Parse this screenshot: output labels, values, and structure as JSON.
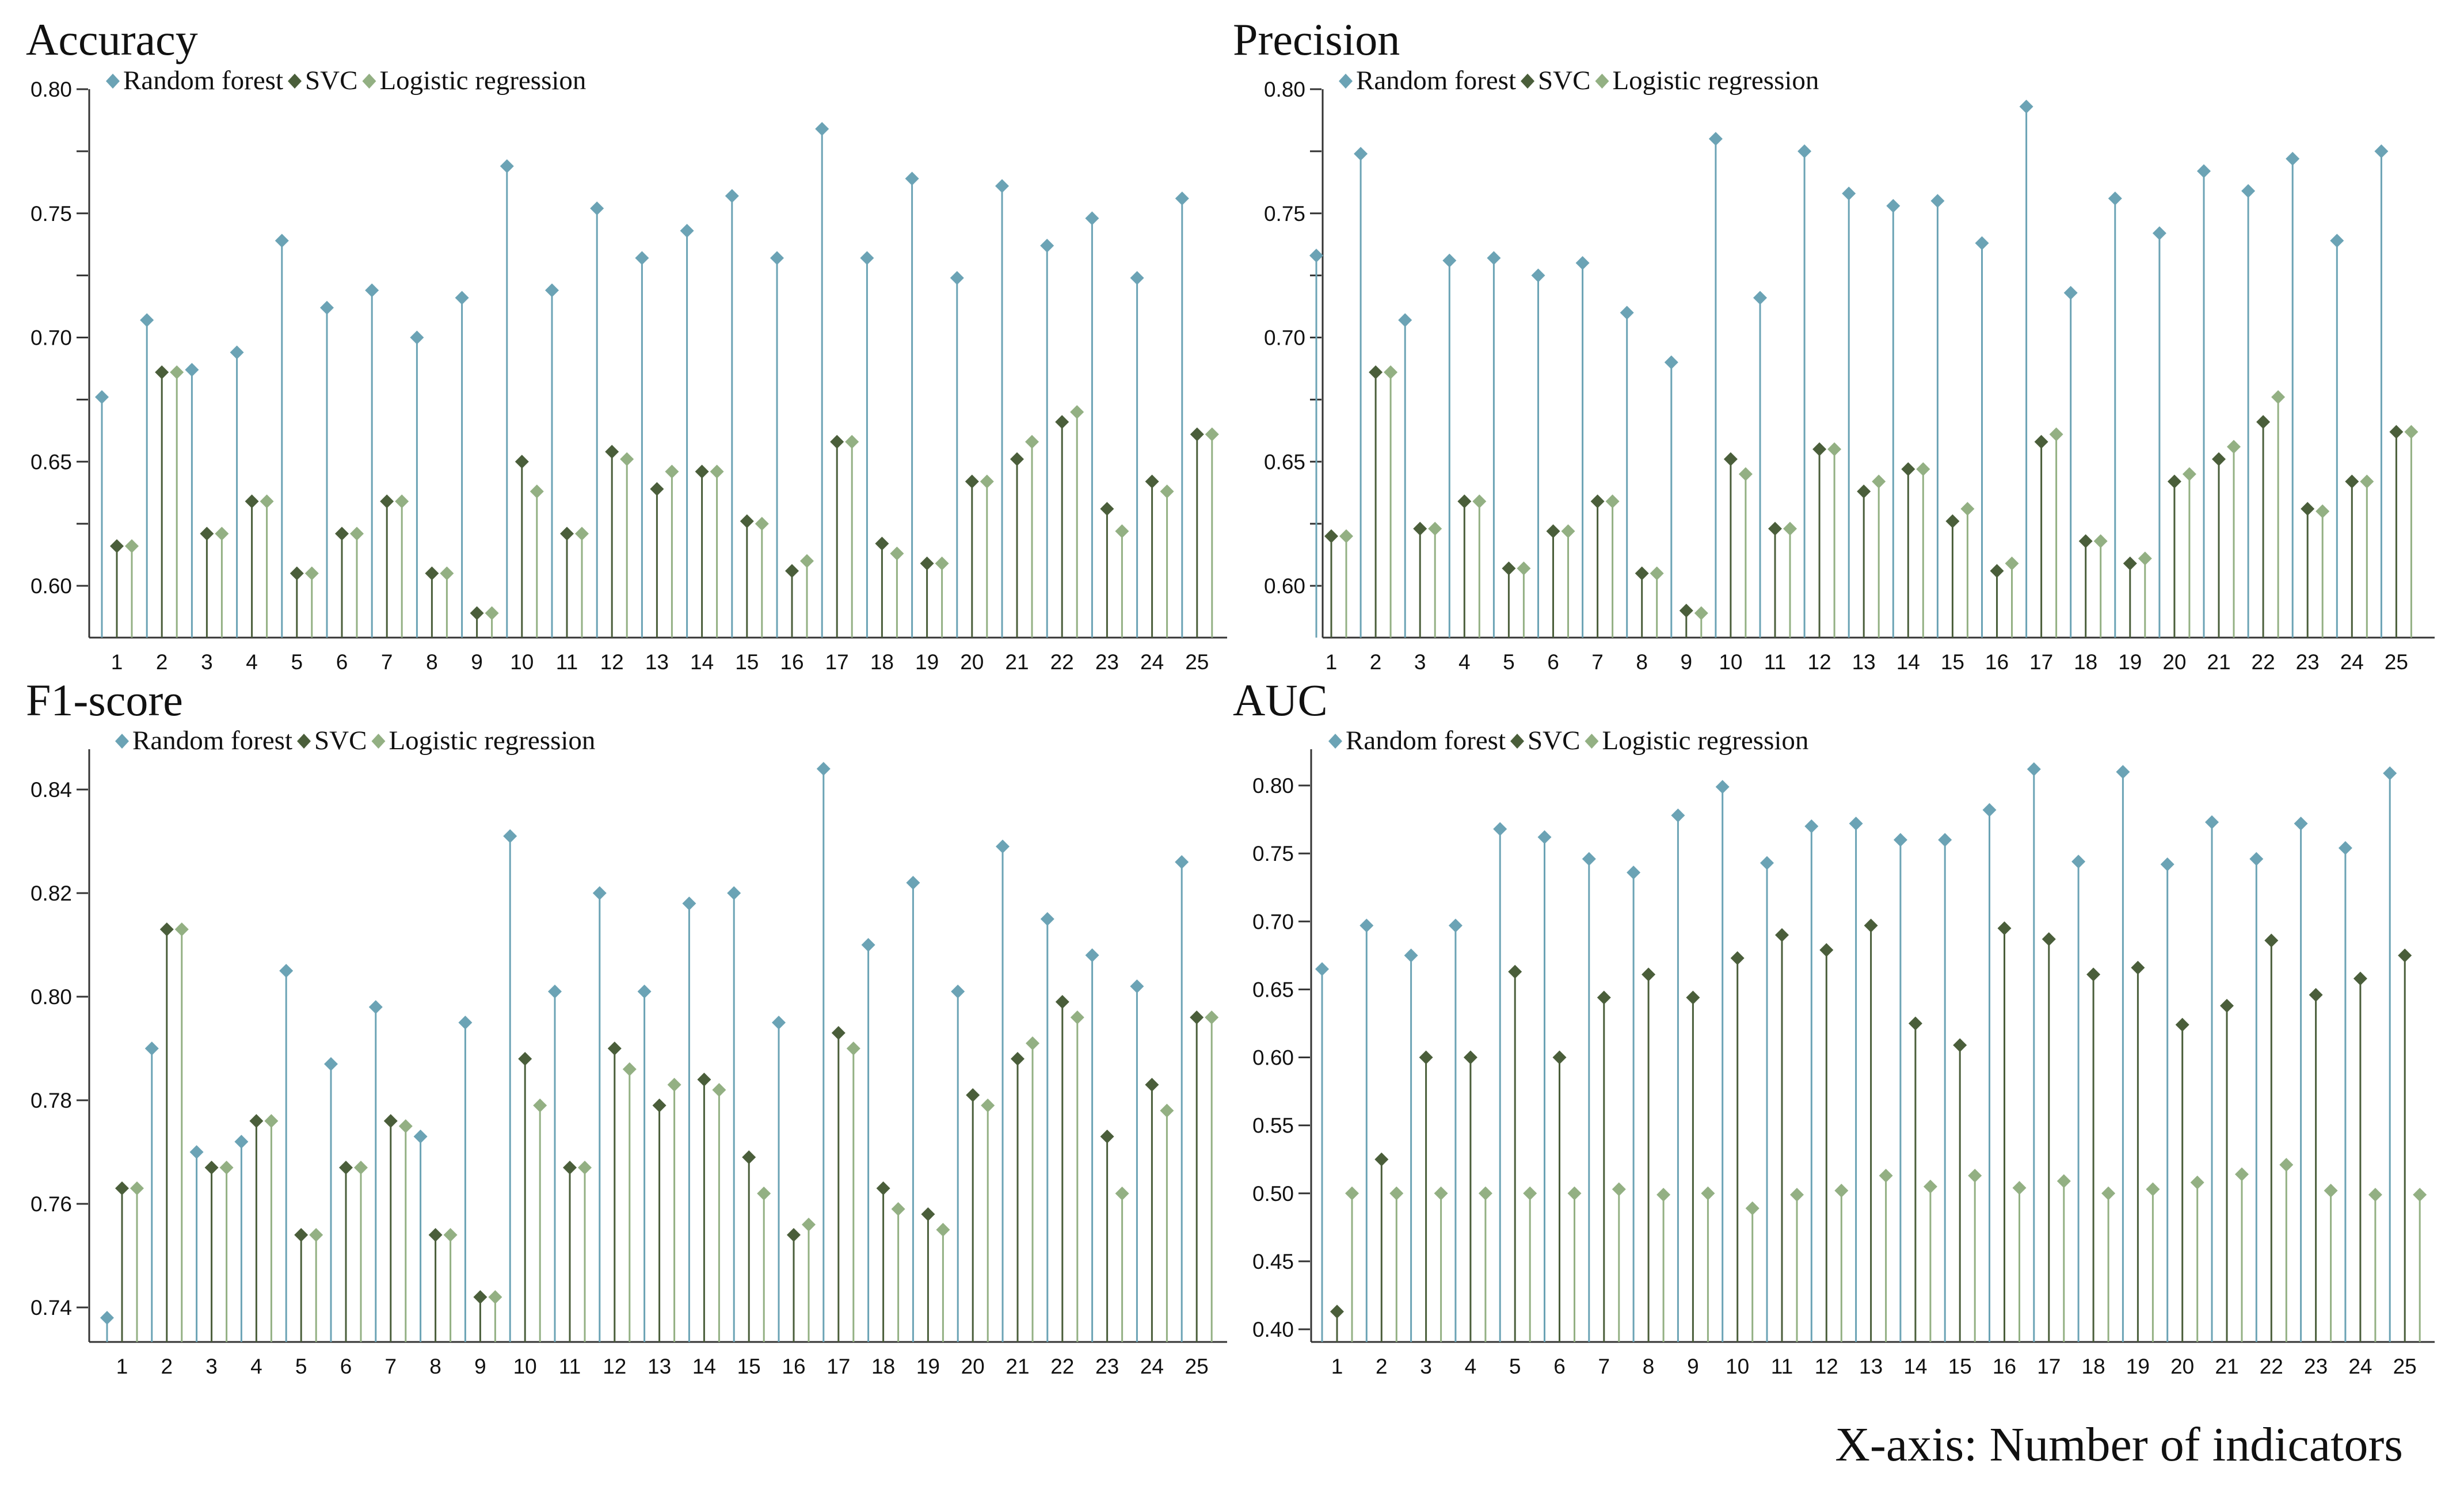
{
  "colors": {
    "random_forest": "#6ba3b5",
    "svc": "#4a5e3a",
    "logistic_regression": "#93b083",
    "axis": "#333333"
  },
  "x_axis_label": "X-axis: Number of indicators",
  "legend_labels": [
    "Random forest",
    "SVC",
    "Logistic regression"
  ],
  "chart_data": [
    {
      "type": "lollipop",
      "title": "Accuracy",
      "x": [
        1,
        2,
        3,
        4,
        5,
        6,
        7,
        8,
        9,
        10,
        11,
        12,
        13,
        14,
        15,
        16,
        17,
        18,
        19,
        20,
        21,
        22,
        23,
        24,
        25
      ],
      "ylim": [
        0.58,
        0.8
      ],
      "yticks": [
        0.6,
        0.625,
        0.65,
        0.675,
        0.7,
        0.725,
        0.75,
        0.775,
        0.8
      ],
      "ytick_labels": [
        "0.60",
        "",
        "0.65",
        "",
        "0.70",
        "",
        "0.75",
        "",
        "0.80"
      ],
      "series": [
        {
          "name": "Random forest",
          "values": [
            0.676,
            0.707,
            0.687,
            0.694,
            0.739,
            0.712,
            0.719,
            0.7,
            0.716,
            0.769,
            0.719,
            0.752,
            0.732,
            0.743,
            0.757,
            0.732,
            0.784,
            0.732,
            0.764,
            0.724,
            0.761,
            0.737,
            0.748,
            0.724,
            0.756
          ]
        },
        {
          "name": "SVC",
          "values": [
            0.616,
            0.686,
            0.621,
            0.634,
            0.605,
            0.621,
            0.634,
            0.605,
            0.589,
            0.65,
            0.621,
            0.654,
            0.639,
            0.646,
            0.626,
            0.606,
            0.658,
            0.617,
            0.609,
            0.642,
            0.651,
            0.666,
            0.631,
            0.642,
            0.661
          ]
        },
        {
          "name": "Logistic regression",
          "values": [
            0.616,
            0.686,
            0.621,
            0.634,
            0.605,
            0.621,
            0.634,
            0.605,
            0.589,
            0.638,
            0.621,
            0.651,
            0.646,
            0.646,
            0.625,
            0.61,
            0.658,
            0.613,
            0.609,
            0.642,
            0.658,
            0.67,
            0.622,
            0.638,
            0.661
          ]
        }
      ]
    },
    {
      "type": "lollipop",
      "title": "Precision",
      "x": [
        1,
        2,
        3,
        4,
        5,
        6,
        7,
        8,
        9,
        10,
        11,
        12,
        13,
        14,
        15,
        16,
        17,
        18,
        19,
        20,
        21,
        22,
        23,
        24,
        25
      ],
      "ylim": [
        0.58,
        0.8
      ],
      "yticks": [
        0.6,
        0.625,
        0.65,
        0.675,
        0.7,
        0.725,
        0.75,
        0.775,
        0.8
      ],
      "ytick_labels": [
        "0.60",
        "",
        "0.65",
        "",
        "0.70",
        "",
        "0.75",
        "",
        "0.80"
      ],
      "series": [
        {
          "name": "Random forest",
          "values": [
            0.733,
            0.774,
            0.707,
            0.731,
            0.732,
            0.725,
            0.73,
            0.71,
            0.69,
            0.78,
            0.716,
            0.775,
            0.758,
            0.753,
            0.755,
            0.738,
            0.793,
            0.718,
            0.756,
            0.742,
            0.767,
            0.759,
            0.772,
            0.739,
            0.775
          ]
        },
        {
          "name": "SVC",
          "values": [
            0.62,
            0.686,
            0.623,
            0.634,
            0.607,
            0.622,
            0.634,
            0.605,
            0.59,
            0.651,
            0.623,
            0.655,
            0.638,
            0.647,
            0.626,
            0.606,
            0.658,
            0.618,
            0.609,
            0.642,
            0.651,
            0.666,
            0.631,
            0.642,
            0.662
          ]
        },
        {
          "name": "Logistic regression",
          "values": [
            0.62,
            0.686,
            0.623,
            0.634,
            0.607,
            0.622,
            0.634,
            0.605,
            0.589,
            0.645,
            0.623,
            0.655,
            0.642,
            0.647,
            0.631,
            0.609,
            0.661,
            0.618,
            0.611,
            0.645,
            0.656,
            0.676,
            0.63,
            0.642,
            0.662
          ]
        }
      ]
    },
    {
      "type": "lollipop",
      "title": "F1-score",
      "x": [
        1,
        2,
        3,
        4,
        5,
        6,
        7,
        8,
        9,
        10,
        11,
        12,
        13,
        14,
        15,
        16,
        17,
        18,
        19,
        20,
        21,
        22,
        23,
        24,
        25
      ],
      "ylim": [
        0.733,
        0.849
      ],
      "yticks": [
        0.74,
        0.76,
        0.78,
        0.8,
        0.82,
        0.84
      ],
      "ytick_labels": [
        "0.74",
        "0.76",
        "0.78",
        "0.80",
        "0.82",
        "0.84"
      ],
      "series": [
        {
          "name": "Random forest",
          "values": [
            0.738,
            0.79,
            0.77,
            0.772,
            0.805,
            0.787,
            0.798,
            0.773,
            0.795,
            0.831,
            0.801,
            0.82,
            0.801,
            0.818,
            0.82,
            0.795,
            0.844,
            0.81,
            0.822,
            0.801,
            0.829,
            0.815,
            0.808,
            0.802,
            0.826
          ]
        },
        {
          "name": "SVC",
          "values": [
            0.763,
            0.813,
            0.767,
            0.776,
            0.754,
            0.767,
            0.776,
            0.754,
            0.742,
            0.788,
            0.767,
            0.79,
            0.779,
            0.784,
            0.769,
            0.754,
            0.793,
            0.763,
            0.758,
            0.781,
            0.788,
            0.799,
            0.773,
            0.783,
            0.796
          ]
        },
        {
          "name": "Logistic regression",
          "values": [
            0.763,
            0.813,
            0.767,
            0.776,
            0.754,
            0.767,
            0.775,
            0.754,
            0.742,
            0.779,
            0.767,
            0.786,
            0.783,
            0.782,
            0.762,
            0.756,
            0.79,
            0.759,
            0.755,
            0.779,
            0.791,
            0.796,
            0.762,
            0.778,
            0.796
          ]
        }
      ]
    },
    {
      "type": "lollipop",
      "title": "AUC",
      "x": [
        1,
        2,
        3,
        4,
        5,
        6,
        7,
        8,
        9,
        10,
        11,
        12,
        13,
        14,
        15,
        16,
        17,
        18,
        19,
        20,
        21,
        22,
        23,
        24,
        25
      ],
      "ylim": [
        0.39,
        0.83
      ],
      "yticks": [
        0.4,
        0.45,
        0.5,
        0.55,
        0.6,
        0.65,
        0.7,
        0.75,
        0.8
      ],
      "ytick_labels": [
        "0.40",
        "0.45",
        "0.50",
        "0.55",
        "0.60",
        "0.65",
        "0.70",
        "0.75",
        "0.80"
      ],
      "series": [
        {
          "name": "Random forest",
          "values": [
            0.665,
            0.697,
            0.675,
            0.697,
            0.768,
            0.762,
            0.746,
            0.736,
            0.778,
            0.799,
            0.743,
            0.77,
            0.772,
            0.76,
            0.76,
            0.782,
            0.812,
            0.744,
            0.81,
            0.742,
            0.773,
            0.746,
            0.772,
            0.754,
            0.809
          ]
        },
        {
          "name": "SVC",
          "values": [
            0.413,
            0.525,
            0.6,
            0.6,
            0.663,
            0.6,
            0.644,
            0.661,
            0.644,
            0.673,
            0.69,
            0.679,
            0.697,
            0.625,
            0.609,
            0.695,
            0.687,
            0.661,
            0.666,
            0.624,
            0.638,
            0.686,
            0.646,
            0.658,
            0.675
          ]
        },
        {
          "name": "Logistic regression",
          "values": [
            0.5,
            0.5,
            0.5,
            0.5,
            0.5,
            0.5,
            0.503,
            0.499,
            0.5,
            0.489,
            0.499,
            0.502,
            0.513,
            0.505,
            0.513,
            0.504,
            0.509,
            0.5,
            0.503,
            0.508,
            0.514,
            0.521,
            0.502,
            0.499,
            0.499
          ]
        }
      ]
    }
  ]
}
